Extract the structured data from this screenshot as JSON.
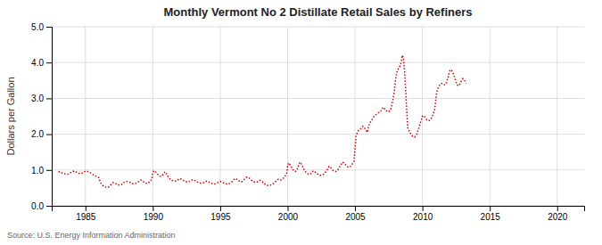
{
  "chart_data": {
    "type": "line",
    "title": "Monthly Vermont No 2 Distillate Retail Sales by Refiners",
    "ylabel": "Dollars per Gallon",
    "source": "Source: U.S. Energy Information Administration",
    "color": "#cc0000",
    "line_style": "dotted",
    "grid": true,
    "xlim": [
      1982.5,
      2022
    ],
    "ylim": [
      0.0,
      5.0
    ],
    "xticks": [
      1985,
      1990,
      1995,
      2000,
      2005,
      2010,
      2015,
      2020
    ],
    "yticks": [
      {
        "value": 0.0,
        "label": "0.0"
      },
      {
        "value": 1.0,
        "label": "1.0"
      },
      {
        "value": 2.0,
        "label": "2.0"
      },
      {
        "value": 3.0,
        "label": "3.0"
      },
      {
        "value": 4.0,
        "label": "4.0"
      },
      {
        "value": 5.0,
        "label": "5.0"
      }
    ],
    "x": [
      1983.0,
      1983.08,
      1983.17,
      1983.25,
      1983.33,
      1983.42,
      1983.5,
      1983.58,
      1983.67,
      1983.75,
      1983.83,
      1983.92,
      1984.0,
      1984.08,
      1984.17,
      1984.25,
      1984.33,
      1984.42,
      1984.5,
      1984.58,
      1984.67,
      1984.75,
      1984.83,
      1984.92,
      1985.0,
      1985.08,
      1985.17,
      1985.25,
      1985.33,
      1985.42,
      1985.5,
      1985.58,
      1985.67,
      1985.75,
      1985.83,
      1985.92,
      1986.0,
      1986.08,
      1986.17,
      1986.25,
      1986.33,
      1986.42,
      1986.5,
      1986.58,
      1986.67,
      1986.75,
      1986.83,
      1986.92,
      1987.0,
      1987.08,
      1987.17,
      1987.25,
      1987.33,
      1987.42,
      1987.5,
      1987.58,
      1987.67,
      1987.75,
      1987.83,
      1987.92,
      1988.0,
      1988.08,
      1988.17,
      1988.25,
      1988.33,
      1988.42,
      1988.5,
      1988.58,
      1988.67,
      1988.75,
      1988.83,
      1988.92,
      1989.0,
      1989.08,
      1989.17,
      1989.25,
      1989.33,
      1989.42,
      1989.5,
      1989.58,
      1989.67,
      1989.75,
      1989.83,
      1989.92,
      1990.0,
      1990.08,
      1990.17,
      1990.25,
      1990.33,
      1990.42,
      1990.5,
      1990.58,
      1990.67,
      1990.75,
      1990.83,
      1990.92,
      1991.0,
      1991.08,
      1991.17,
      1991.25,
      1991.33,
      1991.42,
      1991.5,
      1991.58,
      1991.67,
      1991.75,
      1991.83,
      1991.92,
      1992.0,
      1992.08,
      1992.17,
      1992.25,
      1992.33,
      1992.42,
      1992.5,
      1992.58,
      1992.67,
      1992.75,
      1992.83,
      1992.92,
      1993.0,
      1993.08,
      1993.17,
      1993.25,
      1993.33,
      1993.42,
      1993.5,
      1993.58,
      1993.67,
      1993.75,
      1993.83,
      1993.92,
      1994.0,
      1994.08,
      1994.17,
      1994.25,
      1994.33,
      1994.42,
      1994.5,
      1994.58,
      1994.67,
      1994.75,
      1994.83,
      1994.92,
      1995.0,
      1995.08,
      1995.17,
      1995.25,
      1995.33,
      1995.42,
      1995.5,
      1995.58,
      1995.67,
      1995.75,
      1995.83,
      1995.92,
      1996.0,
      1996.08,
      1996.17,
      1996.25,
      1996.33,
      1996.42,
      1996.5,
      1996.58,
      1996.67,
      1996.75,
      1996.83,
      1996.92,
      1997.0,
      1997.08,
      1997.17,
      1997.25,
      1997.33,
      1997.42,
      1997.5,
      1997.58,
      1997.67,
      1997.75,
      1997.83,
      1997.92,
      1998.0,
      1998.08,
      1998.17,
      1998.25,
      1998.33,
      1998.42,
      1998.5,
      1998.58,
      1998.67,
      1998.75,
      1998.83,
      1998.92,
      1999.0,
      1999.08,
      1999.17,
      1999.25,
      1999.33,
      1999.42,
      1999.5,
      1999.58,
      1999.67,
      1999.75,
      1999.83,
      1999.92,
      2000.0,
      2000.08,
      2000.17,
      2000.25,
      2000.33,
      2000.42,
      2000.5,
      2000.58,
      2000.67,
      2000.75,
      2000.83,
      2000.92,
      2001.0,
      2001.08,
      2001.17,
      2001.25,
      2001.33,
      2001.42,
      2001.5,
      2001.58,
      2001.67,
      2001.75,
      2001.83,
      2001.92,
      2002.0,
      2002.08,
      2002.17,
      2002.25,
      2002.33,
      2002.42,
      2002.5,
      2002.58,
      2002.67,
      2002.75,
      2002.83,
      2002.92,
      2003.0,
      2003.08,
      2003.17,
      2003.25,
      2003.33,
      2003.42,
      2003.5,
      2003.58,
      2003.67,
      2003.75,
      2003.83,
      2003.92,
      2004.0,
      2004.08,
      2004.17,
      2004.25,
      2004.33,
      2004.42,
      2004.5,
      2004.58,
      2004.67,
      2004.75,
      2004.83,
      2004.92,
      2005.0,
      2005.08,
      2005.17,
      2005.25,
      2005.33,
      2005.42,
      2005.5,
      2005.58,
      2005.67,
      2005.75,
      2005.83,
      2005.92,
      2006.0,
      2006.08,
      2006.17,
      2006.25,
      2006.33,
      2006.42,
      2006.5,
      2006.58,
      2006.67,
      2006.75,
      2006.83,
      2006.92,
      2007.0,
      2007.08,
      2007.17,
      2007.25,
      2007.33,
      2007.42,
      2007.5,
      2007.58,
      2007.67,
      2007.75,
      2007.83,
      2007.92,
      2008.0,
      2008.08,
      2008.17,
      2008.25,
      2008.33,
      2008.42,
      2008.5,
      2008.58,
      2008.67,
      2008.75,
      2008.83,
      2008.92,
      2009.0,
      2009.08,
      2009.17,
      2009.25,
      2009.33,
      2009.42,
      2009.5,
      2009.58,
      2009.67,
      2009.75,
      2009.83,
      2009.92,
      2010.0,
      2010.08,
      2010.17,
      2010.25,
      2010.33,
      2010.42,
      2010.5,
      2010.58,
      2010.67,
      2010.75,
      2010.83,
      2010.92,
      2011.0,
      2011.08,
      2011.17,
      2011.25,
      2011.33,
      2011.42,
      2011.5,
      2011.58,
      2011.67,
      2011.75,
      2011.83,
      2011.92,
      2012.0,
      2012.08,
      2012.17,
      2012.25,
      2012.33,
      2012.42,
      2012.5,
      2012.58,
      2012.67,
      2012.75,
      2012.83,
      2012.92,
      2013.0,
      2013.08,
      2013.17,
      2013.25
    ],
    "values": [
      0.94,
      0.95,
      0.93,
      0.92,
      0.91,
      0.9,
      0.89,
      0.88,
      0.88,
      0.89,
      0.91,
      0.93,
      0.94,
      0.96,
      0.97,
      0.96,
      0.94,
      0.93,
      0.91,
      0.9,
      0.9,
      0.91,
      0.93,
      0.95,
      0.96,
      0.97,
      0.96,
      0.95,
      0.93,
      0.91,
      0.89,
      0.87,
      0.85,
      0.83,
      0.82,
      0.8,
      0.78,
      0.68,
      0.62,
      0.58,
      0.55,
      0.53,
      0.52,
      0.51,
      0.52,
      0.54,
      0.57,
      0.6,
      0.63,
      0.65,
      0.64,
      0.62,
      0.6,
      0.59,
      0.58,
      0.58,
      0.59,
      0.61,
      0.64,
      0.67,
      0.68,
      0.68,
      0.67,
      0.66,
      0.65,
      0.63,
      0.62,
      0.61,
      0.62,
      0.63,
      0.65,
      0.67,
      0.7,
      0.72,
      0.71,
      0.69,
      0.67,
      0.65,
      0.63,
      0.62,
      0.64,
      0.67,
      0.7,
      0.73,
      0.93,
      0.98,
      0.96,
      0.92,
      0.89,
      0.86,
      0.83,
      0.82,
      0.83,
      0.87,
      0.92,
      0.95,
      0.9,
      0.85,
      0.8,
      0.76,
      0.73,
      0.71,
      0.7,
      0.69,
      0.69,
      0.7,
      0.72,
      0.74,
      0.76,
      0.75,
      0.73,
      0.71,
      0.69,
      0.68,
      0.67,
      0.66,
      0.67,
      0.68,
      0.7,
      0.72,
      0.73,
      0.72,
      0.7,
      0.68,
      0.66,
      0.65,
      0.64,
      0.63,
      0.63,
      0.64,
      0.66,
      0.68,
      0.69,
      0.68,
      0.66,
      0.64,
      0.63,
      0.62,
      0.61,
      0.61,
      0.62,
      0.63,
      0.65,
      0.67,
      0.68,
      0.67,
      0.66,
      0.64,
      0.63,
      0.62,
      0.61,
      0.61,
      0.62,
      0.64,
      0.66,
      0.69,
      0.73,
      0.76,
      0.76,
      0.74,
      0.71,
      0.69,
      0.68,
      0.67,
      0.69,
      0.72,
      0.76,
      0.79,
      0.8,
      0.79,
      0.77,
      0.74,
      0.71,
      0.69,
      0.67,
      0.66,
      0.66,
      0.67,
      0.69,
      0.71,
      0.71,
      0.69,
      0.66,
      0.63,
      0.6,
      0.58,
      0.57,
      0.56,
      0.57,
      0.58,
      0.6,
      0.62,
      0.64,
      0.67,
      0.7,
      0.73,
      0.74,
      0.73,
      0.72,
      0.73,
      0.76,
      0.8,
      0.84,
      0.88,
      1.1,
      1.2,
      1.15,
      1.1,
      1.05,
      1.0,
      0.97,
      0.96,
      0.98,
      1.05,
      1.15,
      1.22,
      1.18,
      1.12,
      1.05,
      0.99,
      0.95,
      0.91,
      0.89,
      0.88,
      0.88,
      0.91,
      0.95,
      0.98,
      0.96,
      0.93,
      0.9,
      0.88,
      0.86,
      0.85,
      0.85,
      0.86,
      0.88,
      0.91,
      0.95,
      1.0,
      1.05,
      1.1,
      1.08,
      1.04,
      1.0,
      0.97,
      0.96,
      0.96,
      0.98,
      1.02,
      1.07,
      1.12,
      1.18,
      1.22,
      1.2,
      1.17,
      1.13,
      1.1,
      1.08,
      1.08,
      1.1,
      1.14,
      1.19,
      1.23,
      1.6,
      1.95,
      2.05,
      2.1,
      2.12,
      2.15,
      2.18,
      2.22,
      2.2,
      2.15,
      2.1,
      2.05,
      2.22,
      2.3,
      2.35,
      2.4,
      2.45,
      2.5,
      2.52,
      2.55,
      2.58,
      2.6,
      2.62,
      2.65,
      2.7,
      2.75,
      2.72,
      2.68,
      2.65,
      2.63,
      2.62,
      2.65,
      2.72,
      2.85,
      3.0,
      3.2,
      3.5,
      3.7,
      3.8,
      3.85,
      3.9,
      4.0,
      4.2,
      4.15,
      3.8,
      3.3,
      2.7,
      2.15,
      2.1,
      2.05,
      1.98,
      1.95,
      1.93,
      1.92,
      1.95,
      2.0,
      2.1,
      2.2,
      2.3,
      2.4,
      2.5,
      2.52,
      2.48,
      2.44,
      2.4,
      2.38,
      2.38,
      2.4,
      2.45,
      2.52,
      2.6,
      2.7,
      3.0,
      3.2,
      3.3,
      3.35,
      3.4,
      3.42,
      3.4,
      3.38,
      3.38,
      3.4,
      3.5,
      3.6,
      3.75,
      3.8,
      3.78,
      3.72,
      3.65,
      3.55,
      3.45,
      3.38,
      3.35,
      3.38,
      3.45,
      3.5,
      3.55,
      3.52,
      3.48,
      3.42
    ]
  }
}
